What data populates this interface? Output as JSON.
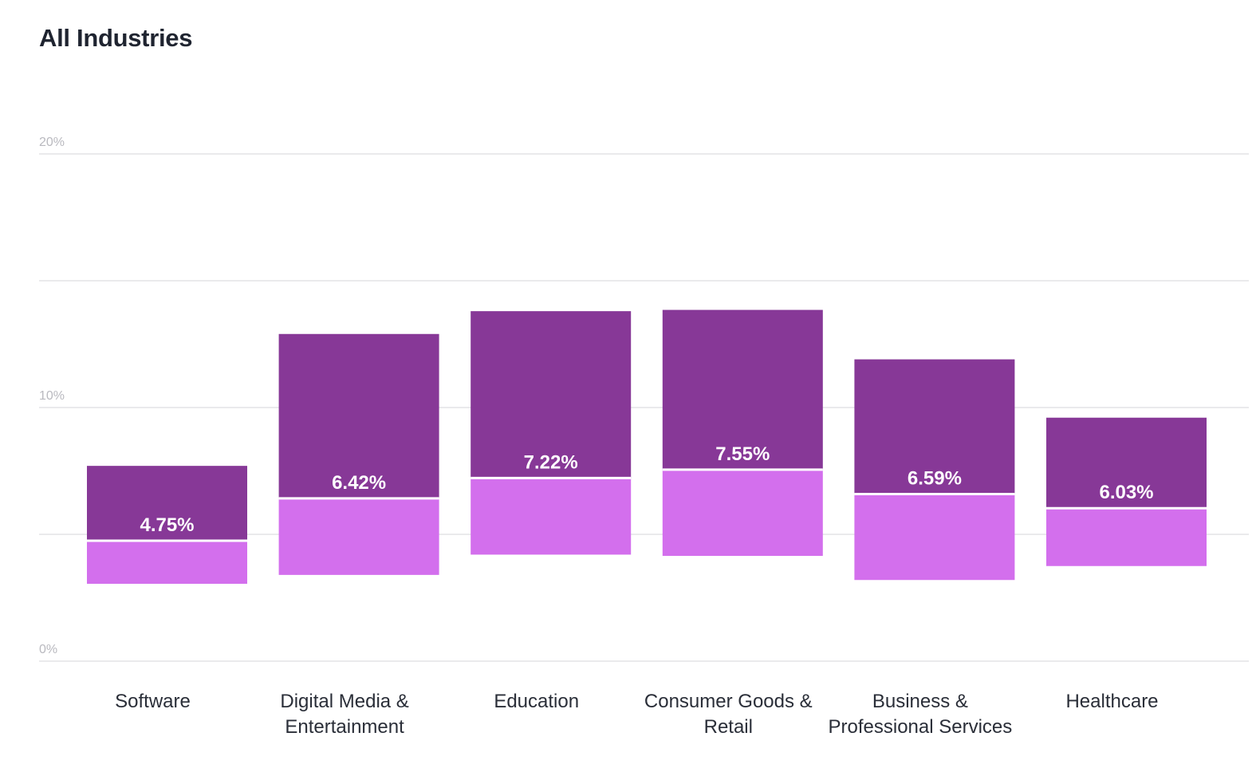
{
  "title": "All Industries",
  "chart_data": {
    "type": "bar",
    "title": "All Industries",
    "xlabel": "",
    "ylabel": "",
    "ylim": [
      0,
      20
    ],
    "yticks": [
      {
        "value": 0,
        "label": "0%"
      },
      {
        "value": 5,
        "label": ""
      },
      {
        "value": 10,
        "label": "10%"
      },
      {
        "value": 15,
        "label": ""
      },
      {
        "value": 20,
        "label": "20%"
      }
    ],
    "grid": true,
    "categories": [
      {
        "label": "Software",
        "lines": [
          "Software"
        ]
      },
      {
        "label": "Digital Media & Entertainment",
        "lines": [
          "Digital Media &",
          "Entertainment"
        ]
      },
      {
        "label": "Education",
        "lines": [
          "Education"
        ]
      },
      {
        "label": "Consumer Goods & Retail",
        "lines": [
          "Consumer Goods &",
          "Retail"
        ]
      },
      {
        "label": "Business & Professional Services",
        "lines": [
          "Business &",
          "Professional Services"
        ]
      },
      {
        "label": "Healthcare",
        "lines": [
          "Healthcare"
        ]
      }
    ],
    "range_low": [
      3.05,
      3.4,
      4.2,
      4.15,
      3.2,
      3.75
    ],
    "range_high": [
      7.7,
      12.9,
      13.8,
      13.85,
      11.9,
      9.6
    ],
    "values": [
      4.75,
      6.42,
      7.22,
      7.55,
      6.59,
      6.03
    ],
    "value_labels": [
      "4.75%",
      "6.42%",
      "7.22%",
      "7.55%",
      "6.59%",
      "6.03%"
    ],
    "colors": {
      "upper": "#873897",
      "lower": "#d36fed",
      "divider": "#ffffff",
      "grid": "#e3e3e6"
    }
  }
}
